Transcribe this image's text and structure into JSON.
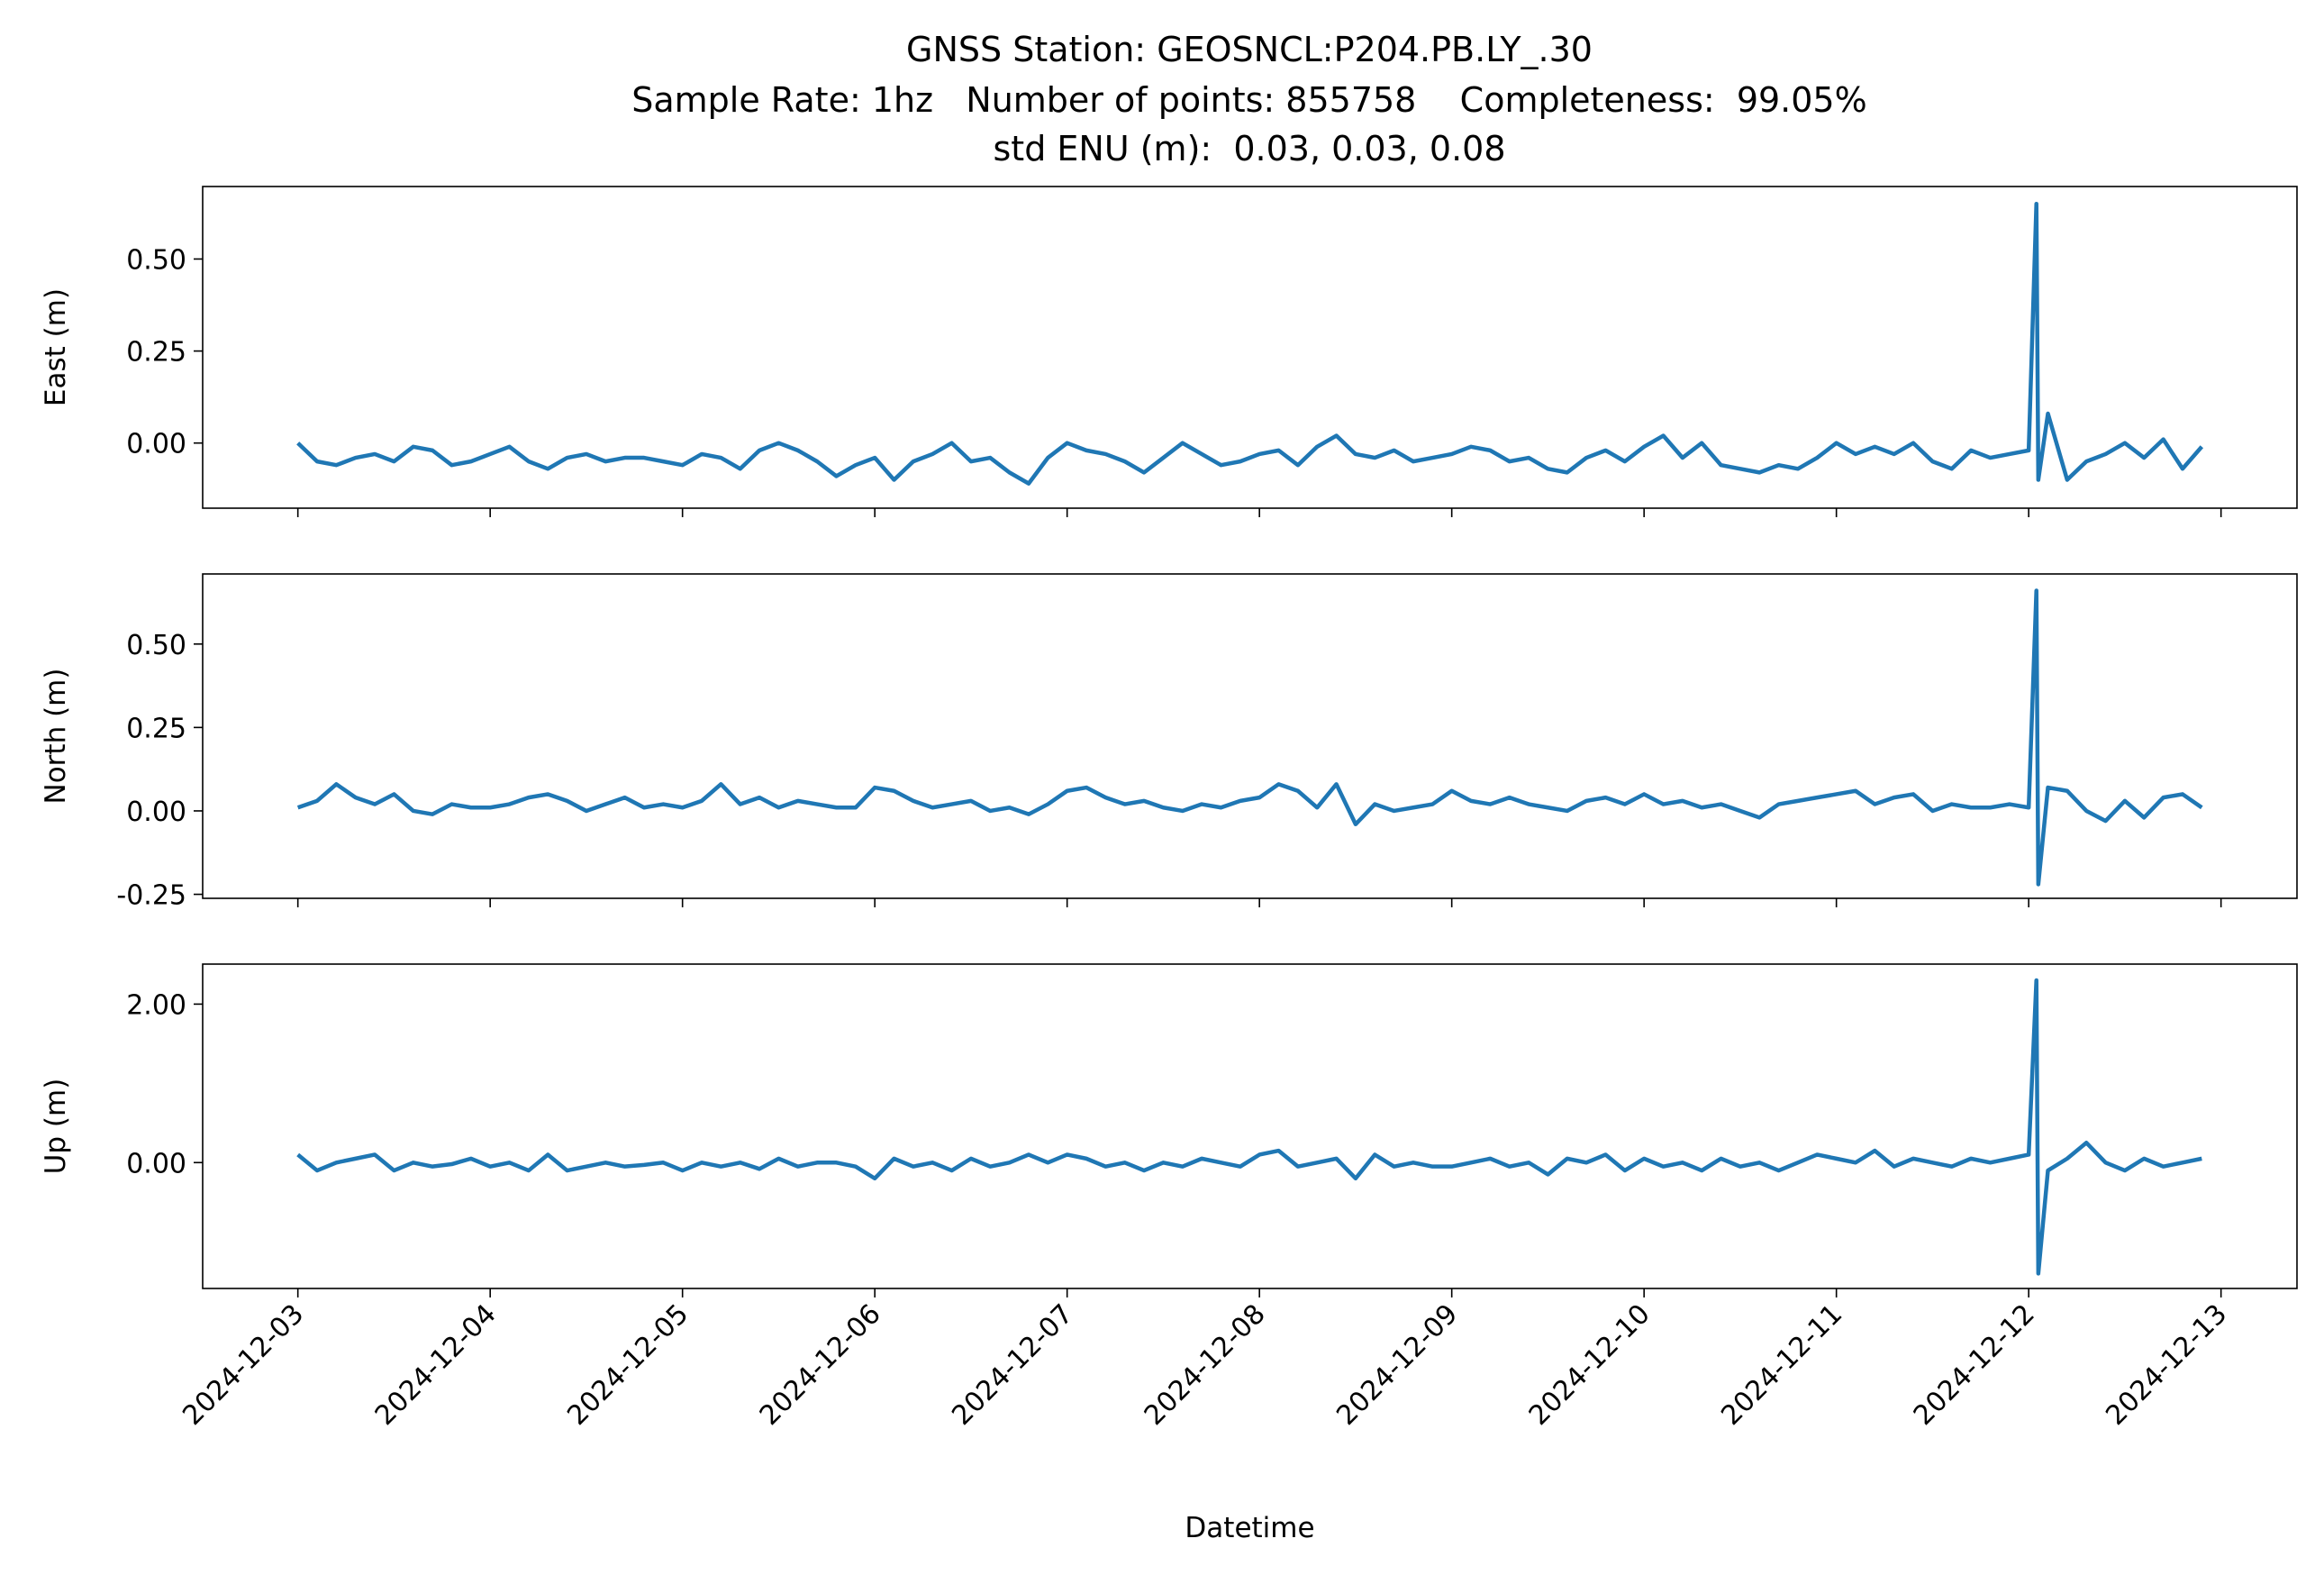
{
  "figure": {
    "title": [
      "GNSS Station: GEOSNCL:P204.PB.LY_.30",
      "Sample Rate: 1hz   Number of points: 855758    Completeness:  99.05%",
      "std ENU (m):  0.03, 0.03, 0.08"
    ]
  },
  "chart_data": [
    {
      "type": "line",
      "ylabel": "East (m)",
      "x": [
        3.0,
        3.1,
        3.2,
        3.3,
        3.4,
        3.5,
        3.6,
        3.7,
        3.8,
        3.9,
        4.0,
        4.1,
        4.2,
        4.3,
        4.4,
        4.5,
        4.6,
        4.7,
        4.8,
        4.9,
        5.0,
        5.1,
        5.2,
        5.3,
        5.4,
        5.5,
        5.6,
        5.7,
        5.8,
        5.9,
        6.0,
        6.1,
        6.2,
        6.3,
        6.4,
        6.5,
        6.6,
        6.7,
        6.8,
        6.9,
        7.0,
        7.1,
        7.2,
        7.3,
        7.4,
        7.5,
        7.6,
        7.7,
        7.8,
        7.9,
        8.0,
        8.1,
        8.2,
        8.3,
        8.4,
        8.5,
        8.6,
        8.7,
        8.8,
        8.9,
        9.0,
        9.1,
        9.2,
        9.3,
        9.4,
        9.5,
        9.6,
        9.7,
        9.8,
        9.9,
        10.0,
        10.1,
        10.2,
        10.3,
        10.4,
        10.5,
        10.6,
        10.7,
        10.8,
        10.9,
        11.0,
        11.1,
        11.2,
        11.3,
        11.4,
        11.5,
        11.6,
        11.7,
        11.8,
        11.9,
        12.0,
        12.04,
        12.05,
        12.1,
        12.2,
        12.3,
        12.4,
        12.5,
        12.6,
        12.7,
        12.8,
        12.9
      ],
      "series": [
        {
          "color": "#1f77b4",
          "values": [
            0.0,
            -0.05,
            -0.06,
            -0.04,
            -0.03,
            -0.05,
            -0.01,
            -0.02,
            -0.06,
            -0.05,
            -0.03,
            -0.01,
            -0.05,
            -0.07,
            -0.04,
            -0.03,
            -0.05,
            -0.04,
            -0.04,
            -0.05,
            -0.06,
            -0.03,
            -0.04,
            -0.07,
            -0.02,
            0.0,
            -0.02,
            -0.05,
            -0.09,
            -0.06,
            -0.04,
            -0.1,
            -0.05,
            -0.03,
            0.0,
            -0.05,
            -0.04,
            -0.08,
            -0.11,
            -0.04,
            0.0,
            -0.02,
            -0.03,
            -0.05,
            -0.08,
            -0.04,
            0.0,
            -0.03,
            -0.06,
            -0.05,
            -0.03,
            -0.02,
            -0.06,
            -0.01,
            0.02,
            -0.03,
            -0.04,
            -0.02,
            -0.05,
            -0.04,
            -0.03,
            -0.01,
            -0.02,
            -0.05,
            -0.04,
            -0.07,
            -0.08,
            -0.04,
            -0.02,
            -0.05,
            -0.01,
            0.02,
            -0.04,
            0.0,
            -0.06,
            -0.07,
            -0.08,
            -0.06,
            -0.07,
            -0.04,
            0.0,
            -0.03,
            -0.01,
            -0.03,
            0.0,
            -0.05,
            -0.07,
            -0.02,
            -0.04,
            -0.03,
            -0.02,
            0.65,
            -0.1,
            0.08,
            -0.1,
            -0.05,
            -0.03,
            0.0,
            -0.04,
            0.01,
            -0.07,
            -0.01
          ]
        }
      ],
      "xlim": [
        2.505,
        13.395
      ],
      "xticks": [
        {
          "value": 3,
          "label": "2024-12-03"
        },
        {
          "value": 4,
          "label": "2024-12-04"
        },
        {
          "value": 5,
          "label": "2024-12-05"
        },
        {
          "value": 6,
          "label": "2024-12-06"
        },
        {
          "value": 7,
          "label": "2024-12-07"
        },
        {
          "value": 8,
          "label": "2024-12-08"
        },
        {
          "value": 9,
          "label": "2024-12-09"
        },
        {
          "value": 10,
          "label": "2024-12-10"
        },
        {
          "value": 11,
          "label": "2024-12-11"
        },
        {
          "value": 12,
          "label": "2024-12-12"
        },
        {
          "value": 13,
          "label": "2024-12-13"
        }
      ],
      "ylim": [
        -0.177,
        0.697
      ],
      "yticks": [
        {
          "value": 0,
          "label": "0.00"
        },
        {
          "value": 0.25,
          "label": "0.25"
        },
        {
          "value": 0.5,
          "label": "0.50"
        }
      ]
    },
    {
      "type": "line",
      "ylabel": "North (m)",
      "x": [
        3.0,
        3.1,
        3.2,
        3.3,
        3.4,
        3.5,
        3.6,
        3.7,
        3.8,
        3.9,
        4.0,
        4.1,
        4.2,
        4.3,
        4.4,
        4.5,
        4.6,
        4.7,
        4.8,
        4.9,
        5.0,
        5.1,
        5.2,
        5.3,
        5.4,
        5.5,
        5.6,
        5.7,
        5.8,
        5.9,
        6.0,
        6.1,
        6.2,
        6.3,
        6.4,
        6.5,
        6.6,
        6.7,
        6.8,
        6.9,
        7.0,
        7.1,
        7.2,
        7.3,
        7.4,
        7.5,
        7.6,
        7.7,
        7.8,
        7.9,
        8.0,
        8.1,
        8.2,
        8.3,
        8.4,
        8.5,
        8.6,
        8.7,
        8.8,
        8.9,
        9.0,
        9.1,
        9.2,
        9.3,
        9.4,
        9.5,
        9.6,
        9.7,
        9.8,
        9.9,
        10.0,
        10.1,
        10.2,
        10.3,
        10.4,
        10.5,
        10.6,
        10.7,
        10.8,
        10.9,
        11.0,
        11.1,
        11.2,
        11.3,
        11.4,
        11.5,
        11.6,
        11.7,
        11.8,
        11.9,
        12.0,
        12.04,
        12.05,
        12.1,
        12.2,
        12.3,
        12.4,
        12.5,
        12.6,
        12.7,
        12.8,
        12.9
      ],
      "series": [
        {
          "color": "#1f77b4",
          "values": [
            0.01,
            0.03,
            0.08,
            0.04,
            0.02,
            0.05,
            0.0,
            -0.01,
            0.02,
            0.01,
            0.01,
            0.02,
            0.04,
            0.05,
            0.03,
            0.0,
            0.02,
            0.04,
            0.01,
            0.02,
            0.01,
            0.03,
            0.08,
            0.02,
            0.04,
            0.01,
            0.03,
            0.02,
            0.01,
            0.01,
            0.07,
            0.06,
            0.03,
            0.01,
            0.02,
            0.03,
            0.0,
            0.01,
            -0.01,
            0.02,
            0.06,
            0.07,
            0.04,
            0.02,
            0.03,
            0.01,
            0.0,
            0.02,
            0.01,
            0.03,
            0.04,
            0.08,
            0.06,
            0.01,
            0.08,
            -0.04,
            0.02,
            0.0,
            0.01,
            0.02,
            0.06,
            0.03,
            0.02,
            0.04,
            0.02,
            0.01,
            0.0,
            0.03,
            0.04,
            0.02,
            0.05,
            0.02,
            0.03,
            0.01,
            0.02,
            0.0,
            -0.02,
            0.02,
            0.03,
            0.04,
            0.05,
            0.06,
            0.02,
            0.04,
            0.05,
            0.0,
            0.02,
            0.01,
            0.01,
            0.02,
            0.01,
            0.66,
            -0.22,
            0.07,
            0.06,
            0.0,
            -0.03,
            0.03,
            -0.02,
            0.04,
            0.05,
            0.01
          ]
        }
      ],
      "xlim": [
        2.505,
        13.395
      ],
      "xticks": [
        3,
        4,
        5,
        6,
        7,
        8,
        9,
        10,
        11,
        12,
        13
      ],
      "ylim": [
        -0.262,
        0.71
      ],
      "yticks": [
        {
          "value": -0.25,
          "label": "-0.25"
        },
        {
          "value": 0,
          "label": "0.00"
        },
        {
          "value": 0.25,
          "label": "0.25"
        },
        {
          "value": 0.5,
          "label": "0.50"
        }
      ]
    },
    {
      "type": "line",
      "ylabel": "Up (m)",
      "xlabel": "Datetime",
      "x": [
        3.0,
        3.1,
        3.2,
        3.3,
        3.4,
        3.5,
        3.6,
        3.7,
        3.8,
        3.9,
        4.0,
        4.1,
        4.2,
        4.3,
        4.4,
        4.5,
        4.6,
        4.7,
        4.8,
        4.9,
        5.0,
        5.1,
        5.2,
        5.3,
        5.4,
        5.5,
        5.6,
        5.7,
        5.8,
        5.9,
        6.0,
        6.1,
        6.2,
        6.3,
        6.4,
        6.5,
        6.6,
        6.7,
        6.8,
        6.9,
        7.0,
        7.1,
        7.2,
        7.3,
        7.4,
        7.5,
        7.6,
        7.7,
        7.8,
        7.9,
        8.0,
        8.1,
        8.2,
        8.3,
        8.4,
        8.5,
        8.6,
        8.7,
        8.8,
        8.9,
        9.0,
        9.1,
        9.2,
        9.3,
        9.4,
        9.5,
        9.6,
        9.7,
        9.8,
        9.9,
        10.0,
        10.1,
        10.2,
        10.3,
        10.4,
        10.5,
        10.6,
        10.7,
        10.8,
        10.9,
        11.0,
        11.1,
        11.2,
        11.3,
        11.4,
        11.5,
        11.6,
        11.7,
        11.8,
        11.9,
        12.0,
        12.04,
        12.05,
        12.1,
        12.2,
        12.3,
        12.4,
        12.5,
        12.6,
        12.7,
        12.8,
        12.9
      ],
      "series": [
        {
          "color": "#1f77b4",
          "values": [
            0.1,
            -0.1,
            0.0,
            0.05,
            0.1,
            -0.1,
            0.0,
            -0.05,
            -0.02,
            0.05,
            -0.05,
            0.0,
            -0.1,
            0.1,
            -0.1,
            -0.05,
            0.0,
            -0.05,
            -0.03,
            0.0,
            -0.1,
            0.0,
            -0.05,
            0.0,
            -0.08,
            0.05,
            -0.05,
            0.0,
            0.0,
            -0.05,
            -0.2,
            0.05,
            -0.05,
            0.0,
            -0.1,
            0.05,
            -0.05,
            0.0,
            0.1,
            0.0,
            0.1,
            0.05,
            -0.05,
            0.0,
            -0.1,
            0.0,
            -0.05,
            0.05,
            0.0,
            -0.05,
            0.1,
            0.15,
            -0.05,
            0.0,
            0.05,
            -0.2,
            0.1,
            -0.05,
            0.0,
            -0.05,
            -0.05,
            0.0,
            0.05,
            -0.05,
            0.0,
            -0.15,
            0.05,
            0.0,
            0.1,
            -0.1,
            0.05,
            -0.05,
            0.0,
            -0.1,
            0.05,
            -0.05,
            0.0,
            -0.1,
            0.0,
            0.1,
            0.05,
            0.0,
            0.15,
            -0.05,
            0.05,
            0.0,
            -0.05,
            0.05,
            0.0,
            0.05,
            0.1,
            2.3,
            -1.4,
            -0.1,
            0.05,
            0.25,
            0.0,
            -0.1,
            0.05,
            -0.05,
            0.0,
            0.05
          ]
        }
      ],
      "xlim": [
        2.505,
        13.395
      ],
      "xticks": [
        {
          "value": 3,
          "label": "2024-12-03"
        },
        {
          "value": 4,
          "label": "2024-12-04"
        },
        {
          "value": 5,
          "label": "2024-12-05"
        },
        {
          "value": 6,
          "label": "2024-12-06"
        },
        {
          "value": 7,
          "label": "2024-12-07"
        },
        {
          "value": 8,
          "label": "2024-12-08"
        },
        {
          "value": 9,
          "label": "2024-12-09"
        },
        {
          "value": 10,
          "label": "2024-12-10"
        },
        {
          "value": 11,
          "label": "2024-12-11"
        },
        {
          "value": 12,
          "label": "2024-12-12"
        },
        {
          "value": 13,
          "label": "2024-12-13"
        }
      ],
      "ylim": [
        -1.589,
        2.505
      ],
      "yticks": [
        {
          "value": 0,
          "label": "0.00"
        },
        {
          "value": 2,
          "label": "2.00"
        }
      ]
    }
  ]
}
